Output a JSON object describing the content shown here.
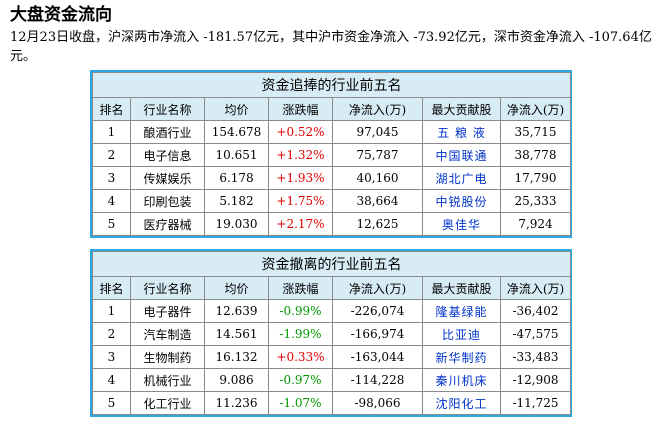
{
  "page": {
    "title": "大盘资金流向",
    "summary": "12月23日收盘，沪深两市净流入 -181.57亿元，其中沪市资金净流入 -73.92亿元，深市资金净流入 -107.64亿元。"
  },
  "top_table": {
    "caption": "资金追捧的行业前五名",
    "headers": [
      "排名",
      "行业名称",
      "均价",
      "涨跌幅",
      "净流入(万)",
      "最大贡献股",
      "净流入(万)"
    ],
    "rows": [
      {
        "rank": "1",
        "industry": "酿酒行业",
        "price": "154.678",
        "change": "+0.52%",
        "inflow": "97,045",
        "stock": "五 粮 液",
        "stock_inflow": "35,715"
      },
      {
        "rank": "2",
        "industry": "电子信息",
        "price": "10.651",
        "change": "+1.32%",
        "inflow": "75,787",
        "stock": "中国联通",
        "stock_inflow": "38,778"
      },
      {
        "rank": "3",
        "industry": "传媒娱乐",
        "price": "6.178",
        "change": "+1.93%",
        "inflow": "40,160",
        "stock": "湖北广电",
        "stock_inflow": "17,790"
      },
      {
        "rank": "4",
        "industry": "印刷包装",
        "price": "5.182",
        "change": "+1.75%",
        "inflow": "38,664",
        "stock": "中锐股份",
        "stock_inflow": "25,333"
      },
      {
        "rank": "5",
        "industry": "医疗器械",
        "price": "19.030",
        "change": "+2.17%",
        "inflow": "12,625",
        "stock": "奥佳华",
        "stock_inflow": "7,924"
      }
    ]
  },
  "bottom_table": {
    "caption": "资金撤离的行业前五名",
    "headers": [
      "排名",
      "行业名称",
      "均价",
      "涨跌幅",
      "净流入(万)",
      "最大贡献股",
      "净流入(万)"
    ],
    "rows": [
      {
        "rank": "1",
        "industry": "电子器件",
        "price": "12.639",
        "change": "-0.99%",
        "inflow": "-226,074",
        "stock": "隆基绿能",
        "stock_inflow": "-36,402"
      },
      {
        "rank": "2",
        "industry": "汽车制造",
        "price": "14.561",
        "change": "-1.99%",
        "inflow": "-166,974",
        "stock": "比亚迪",
        "stock_inflow": "-47,575"
      },
      {
        "rank": "3",
        "industry": "生物制药",
        "price": "16.132",
        "change": "+0.33%",
        "inflow": "-163,044",
        "stock": "新华制药",
        "stock_inflow": "-33,483"
      },
      {
        "rank": "4",
        "industry": "机械行业",
        "price": "9.086",
        "change": "-0.97%",
        "inflow": "-114,228",
        "stock": "秦川机床",
        "stock_inflow": "-12,908"
      },
      {
        "rank": "5",
        "industry": "化工行业",
        "price": "11.236",
        "change": "-1.07%",
        "inflow": "-98,066",
        "stock": "沈阳化工",
        "stock_inflow": "-11,725"
      }
    ]
  },
  "colors": {
    "panel_border": "#2aa8e6",
    "header_bg": "#d8ecf6",
    "rise": "#e00000",
    "fall": "#009900",
    "stock_link": "#0033cc"
  }
}
